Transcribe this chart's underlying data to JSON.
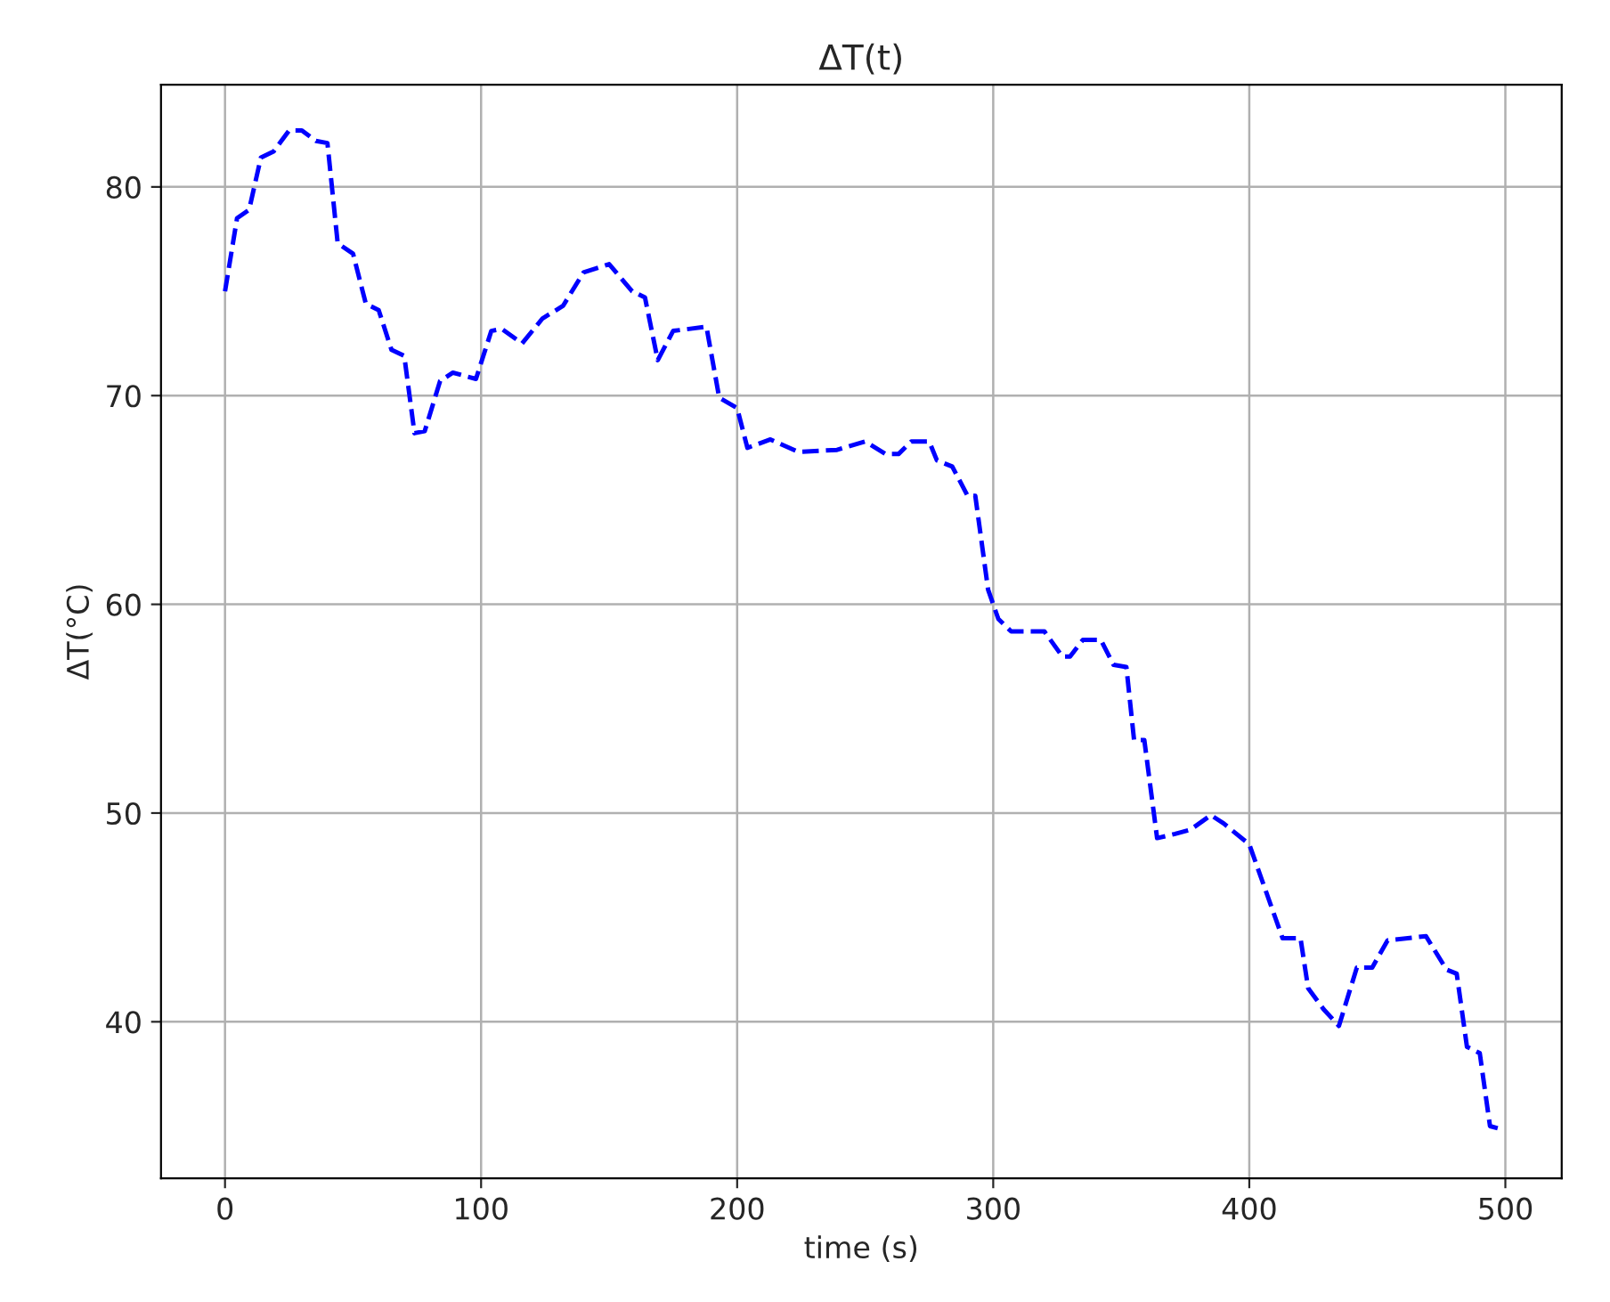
{
  "chart_data": {
    "type": "line",
    "title": "ΔT(t)",
    "xlabel": "time (s)",
    "ylabel": "ΔT(°C)",
    "xlim": [
      -25,
      522
    ],
    "ylim": [
      32.5,
      84.9
    ],
    "xticks": [
      0,
      100,
      200,
      300,
      400,
      500
    ],
    "yticks": [
      40,
      50,
      60,
      70,
      80
    ],
    "grid": true,
    "line_style": "dashed",
    "marker": "none",
    "series": [
      {
        "color": "#0000ff",
        "x": [
          0,
          4.7,
          9.4,
          14,
          19,
          25,
          30,
          35.5,
          40,
          44,
          50,
          55,
          60,
          65,
          70,
          74,
          78,
          84,
          89,
          98,
          104,
          108,
          116,
          124,
          132,
          140,
          150,
          159,
          164,
          169,
          175,
          188,
          193,
          200,
          204,
          213,
          224,
          239,
          250,
          258,
          263,
          268,
          275,
          278,
          284,
          290,
          293,
          298,
          302,
          307,
          320,
          327,
          330,
          335,
          342,
          347,
          352,
          355,
          359,
          364,
          371,
          377,
          385,
          390,
          400,
          413,
          420,
          423,
          429,
          435,
          442,
          448,
          454,
          469,
          477,
          481,
          485,
          490,
          494,
          497
        ],
        "values": [
          75.0,
          78.5,
          78.9,
          81.4,
          81.7,
          82.7,
          82.7,
          82.2,
          82.1,
          77.3,
          76.8,
          74.4,
          74.1,
          72.2,
          71.9,
          68.2,
          68.3,
          70.7,
          71.1,
          70.8,
          73.1,
          73.2,
          72.5,
          73.7,
          74.3,
          75.9,
          76.3,
          75.0,
          74.7,
          71.7,
          73.1,
          73.3,
          69.9,
          69.4,
          67.5,
          67.9,
          67.3,
          67.4,
          67.8,
          67.2,
          67.2,
          67.8,
          67.8,
          66.9,
          66.6,
          65.2,
          65.2,
          60.7,
          59.3,
          58.7,
          58.7,
          57.5,
          57.5,
          58.3,
          58.3,
          57.1,
          57.0,
          53.5,
          53.5,
          48.8,
          49.0,
          49.2,
          49.9,
          49.5,
          48.5,
          44.0,
          44.0,
          41.6,
          40.6,
          39.8,
          42.6,
          42.6,
          43.9,
          44.1,
          42.5,
          42.3,
          38.8,
          38.5,
          35.0,
          34.9
        ]
      }
    ]
  }
}
